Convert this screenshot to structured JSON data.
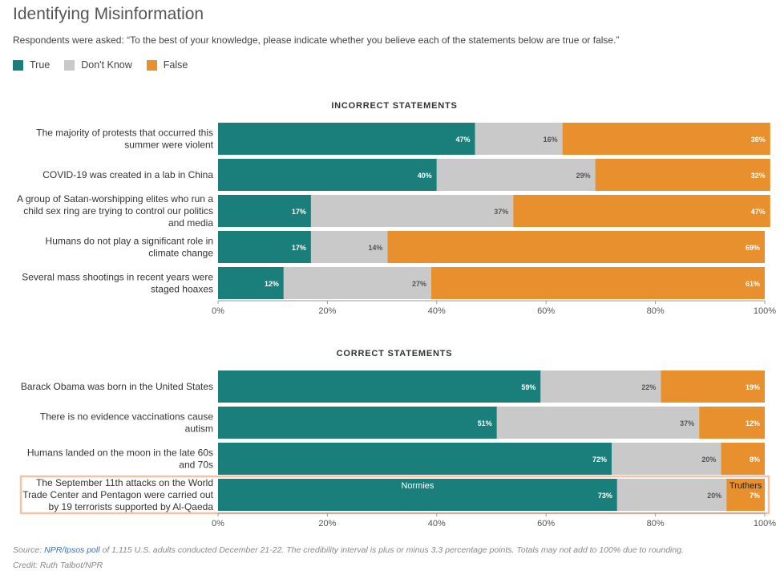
{
  "title": "Identifying Misinformation",
  "subtitle": "Respondents were asked: “To the best of your knowledge, please indicate whether you believe each of the statements below are true or false.”",
  "legend": [
    {
      "label": "True",
      "color": "#1a7f7a"
    },
    {
      "label": "Don't Know",
      "color": "#c9c9c9"
    },
    {
      "label": "False",
      "color": "#e8902d"
    }
  ],
  "chart_data": [
    {
      "type": "bar",
      "orientation": "horizontal-stacked",
      "title": "INCORRECT STATEMENTS",
      "categories": [
        [
          "The majority of protests that occurred this",
          "summer were violent"
        ],
        [
          "COVID-19 was created in a lab in China"
        ],
        [
          "A group of Satan-worshipping elites who run a",
          "child sex ring are trying to control our politics",
          "and media"
        ],
        [
          "Humans do not play a significant role in",
          "climate change"
        ],
        [
          "Several mass shootings in recent years were",
          "staged hoaxes"
        ]
      ],
      "series": [
        {
          "name": "True",
          "values": [
            47,
            40,
            17,
            17,
            12
          ]
        },
        {
          "name": "Don't Know",
          "values": [
            16,
            29,
            37,
            14,
            27
          ]
        },
        {
          "name": "False",
          "values": [
            38,
            32,
            47,
            69,
            61
          ]
        }
      ],
      "xlim": [
        0,
        100
      ],
      "xticks": [
        "0%",
        "20%",
        "40%",
        "60%",
        "80%",
        "100%"
      ]
    },
    {
      "type": "bar",
      "orientation": "horizontal-stacked",
      "title": "CORRECT STATEMENTS",
      "categories": [
        [
          "Barack Obama was born in the United States"
        ],
        [
          "There is no evidence vaccinations cause",
          "autism"
        ],
        [
          "Humans landed on the moon in the late 60s",
          "and 70s"
        ],
        [
          "The September 11th attacks on the World",
          "Trade Center and Pentagon were carried out",
          "by 19 terrorists supported by Al-Qaeda"
        ]
      ],
      "series": [
        {
          "name": "True",
          "values": [
            59,
            51,
            72,
            73
          ]
        },
        {
          "name": "Don't Know",
          "values": [
            22,
            37,
            20,
            20
          ]
        },
        {
          "name": "False",
          "values": [
            19,
            12,
            8,
            7
          ]
        }
      ],
      "xlim": [
        0,
        100
      ],
      "xticks": [
        "0%",
        "20%",
        "40%",
        "60%",
        "80%",
        "100%"
      ],
      "annotations": {
        "true_segment": "Normies",
        "false_segment": "Truthers",
        "highlighted_row": 3
      }
    }
  ],
  "footer": {
    "source_prefix": "Source: ",
    "source_link": "NPR/Ipsos poll",
    "source_rest": " of 1,115 U.S. adults conducted December 21-22. The credibility interval is plus or minus 3.3 percentage points. Totals may not add to 100% due to rounding.",
    "credit": "Credit: Ruth Talbot/NPR"
  }
}
